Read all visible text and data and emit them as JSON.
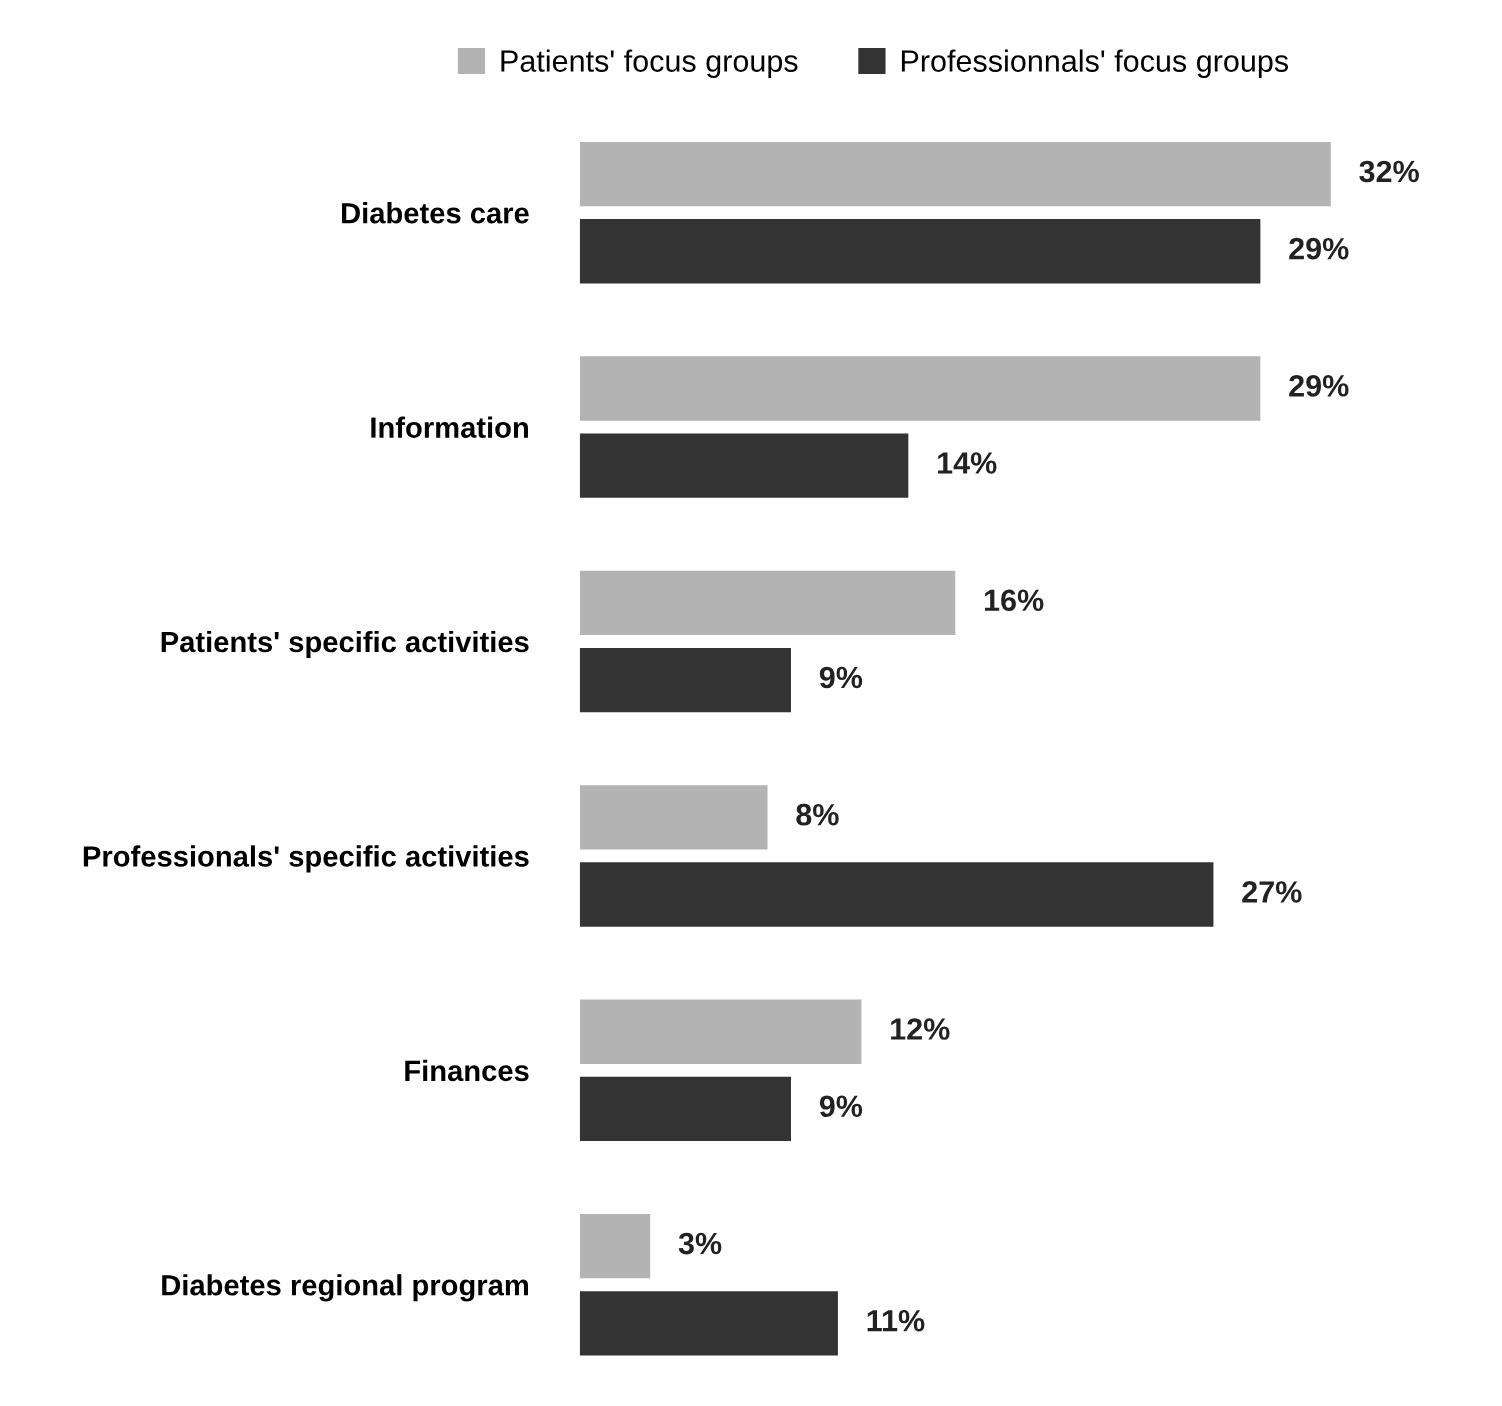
{
  "chart_data": {
    "type": "bar",
    "orientation": "horizontal",
    "categories": [
      "Diabetes care",
      "Information",
      "Patients' specific activities",
      "Professionals' specific activities",
      "Finances",
      "Diabetes regional program"
    ],
    "series": [
      {
        "name": "Patients' focus groups",
        "color": "#b3b3b3",
        "values": [
          32,
          29,
          16,
          8,
          12,
          3
        ],
        "value_labels": [
          "32%",
          "29%",
          "16%",
          "8%",
          "12%",
          "3%"
        ]
      },
      {
        "name": "Professionnals' focus groups",
        "color": "#333333",
        "values": [
          29,
          14,
          9,
          27,
          9,
          11
        ],
        "value_labels": [
          "29%",
          "14%",
          "9%",
          "27%",
          "9%",
          "11%"
        ]
      }
    ],
    "legend": "top",
    "grid": false
  }
}
